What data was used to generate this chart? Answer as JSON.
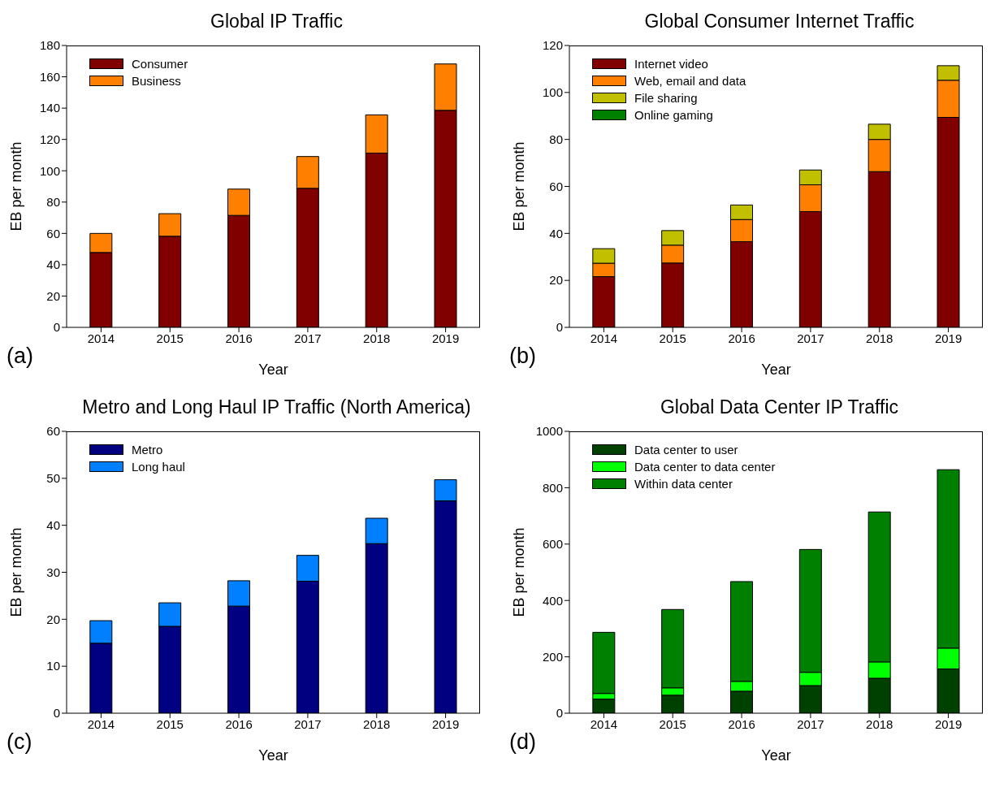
{
  "chart_data": [
    {
      "type": "bar",
      "title": "Global IP Traffic",
      "xlabel": "Year",
      "ylabel": "EB per month",
      "categories": [
        "2014",
        "2015",
        "2016",
        "2017",
        "2018",
        "2019"
      ],
      "stacked": true,
      "legend": "top left",
      "grid": false,
      "ylim": [
        0,
        180
      ],
      "yticks": [
        0,
        20,
        40,
        60,
        80,
        100,
        120,
        140,
        160,
        180
      ],
      "annotations": [
        "(a)"
      ],
      "series": [
        {
          "name": "Consumer",
          "color": "#800000",
          "values": [
            47.8,
            58.2,
            71.5,
            88.8,
            111.3,
            138.6
          ]
        },
        {
          "name": "Business",
          "color": "#ff8000",
          "values": [
            12.2,
            14.4,
            16.8,
            20.3,
            24.4,
            29.6
          ]
        }
      ]
    },
    {
      "type": "bar",
      "title": "Global Consumer Internet Traffic",
      "xlabel": "Year",
      "ylabel": "EB per month",
      "categories": [
        "2014",
        "2015",
        "2016",
        "2017",
        "2018",
        "2019"
      ],
      "stacked": true,
      "legend": "top left",
      "grid": false,
      "ylim": [
        0,
        120
      ],
      "yticks": [
        0,
        20,
        40,
        60,
        80,
        100,
        120
      ],
      "annotations": [
        "(b)"
      ],
      "series": [
        {
          "name": "Internet video",
          "color": "#800000",
          "values": [
            21.6,
            27.4,
            36.5,
            49.3,
            66.3,
            89.4
          ]
        },
        {
          "name": "Web, email and data",
          "color": "#ff8000",
          "values": [
            5.7,
            7.6,
            9.4,
            11.4,
            13.7,
            15.8
          ]
        },
        {
          "name": "File sharing",
          "color": "#c0c000",
          "values": [
            6.2,
            6.2,
            6.2,
            6.3,
            6.5,
            6.2
          ]
        },
        {
          "name": "Online gaming",
          "color": "#008000",
          "values": [
            0,
            0,
            0,
            0,
            0,
            0
          ]
        }
      ]
    },
    {
      "type": "bar",
      "title": "Metro and Long Haul IP Traffic (North America)",
      "xlabel": "Year",
      "ylabel": "EB per month",
      "categories": [
        "2014",
        "2015",
        "2016",
        "2017",
        "2018",
        "2019"
      ],
      "stacked": true,
      "legend": "top left",
      "grid": false,
      "ylim": [
        0,
        60
      ],
      "yticks": [
        0,
        10,
        20,
        30,
        40,
        50,
        60
      ],
      "annotations": [
        "(c)"
      ],
      "series": [
        {
          "name": "Metro",
          "color": "#000080",
          "values": [
            14.9,
            18.5,
            22.8,
            28.1,
            36.1,
            45.2
          ]
        },
        {
          "name": "Long haul",
          "color": "#0080ff",
          "values": [
            4.8,
            5.0,
            5.4,
            5.5,
            5.4,
            4.5
          ]
        }
      ]
    },
    {
      "type": "bar",
      "title": "Global Data Center IP Traffic",
      "xlabel": "Year",
      "ylabel": "EB per month",
      "categories": [
        "2014",
        "2015",
        "2016",
        "2017",
        "2018",
        "2019"
      ],
      "stacked": true,
      "legend": "top left",
      "grid": false,
      "ylim": [
        0,
        1000
      ],
      "yticks": [
        0,
        200,
        400,
        600,
        800,
        1000
      ],
      "annotations": [
        "(d)"
      ],
      "series": [
        {
          "name": "Data center to user",
          "color": "#004000",
          "values": [
            50,
            64,
            78,
            98,
            124,
            157
          ]
        },
        {
          "name": "Data center to data center",
          "color": "#00ff00",
          "values": [
            20,
            26,
            35,
            47,
            58,
            74
          ]
        },
        {
          "name": "Within data center",
          "color": "#008000",
          "values": [
            217,
            278,
            354,
            436,
            532,
            633
          ]
        }
      ]
    }
  ]
}
